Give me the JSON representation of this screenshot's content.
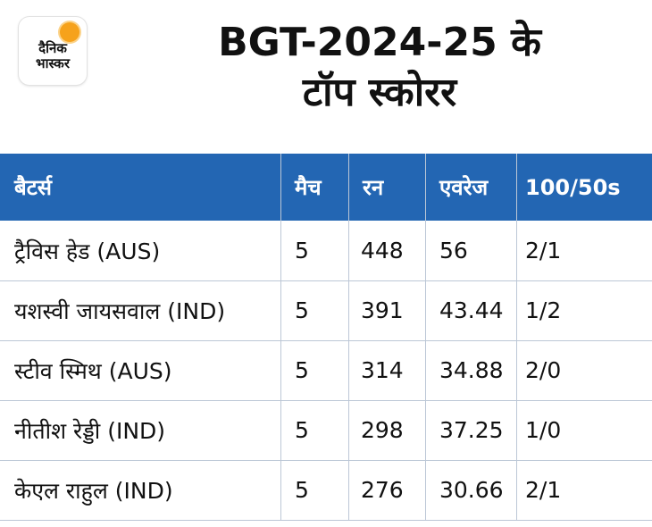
{
  "logo": {
    "line1": "दैनिक",
    "line2": "भास्कर"
  },
  "title": {
    "line1": "BGT-2024-25 के",
    "line2": "टॉप स्कोरर"
  },
  "colors": {
    "header_bg": "#2366b3",
    "header_text": "#ffffff",
    "grid": "#bcc7d6",
    "logo_accent": "#f6a21b"
  },
  "table": {
    "headers": [
      "बैटर्स",
      "मैच",
      "रन",
      "एवरेज",
      "100/50s"
    ],
    "rows": [
      [
        "ट्रैविस हेड (AUS)",
        "5",
        "448",
        "56",
        "2/1"
      ],
      [
        "यशस्वी जायसवाल (IND)",
        "5",
        "391",
        "43.44",
        "1/2"
      ],
      [
        "स्टीव स्मिथ (AUS)",
        "5",
        "314",
        "34.88",
        "2/0"
      ],
      [
        "नीतीश रेड्डी (IND)",
        "5",
        "298",
        "37.25",
        "1/0"
      ],
      [
        "केएल राहुल (IND)",
        "5",
        "276",
        "30.66",
        "2/1"
      ]
    ]
  }
}
